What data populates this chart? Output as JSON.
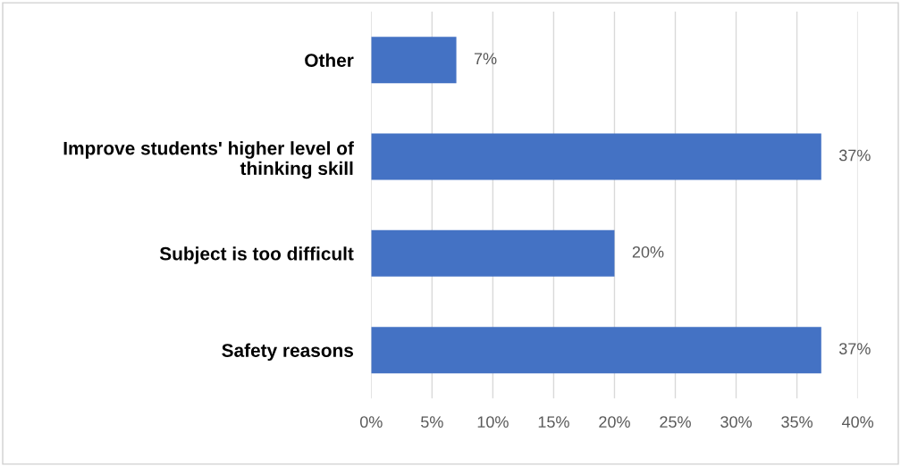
{
  "chart_data": {
    "type": "bar",
    "orientation": "horizontal",
    "categories": [
      "Other",
      "Improve students' higher level of\nthinking skill",
      "Subject is too difficult",
      "Safety reasons"
    ],
    "values": [
      7,
      37,
      20,
      37
    ],
    "color": "#4472c4",
    "data_labels": true,
    "value_labels": [
      "7%",
      "37%",
      "20%",
      "37%"
    ],
    "xlim": [
      0,
      40
    ],
    "xticks": [
      {
        "value": 0,
        "label": "0%"
      },
      {
        "value": 5,
        "label": "5%"
      },
      {
        "value": 10,
        "label": "10%"
      },
      {
        "value": 15,
        "label": "15%"
      },
      {
        "value": 20,
        "label": "20%"
      },
      {
        "value": 25,
        "label": "25%"
      },
      {
        "value": 30,
        "label": "30%"
      },
      {
        "value": 35,
        "label": "35%"
      },
      {
        "value": 40,
        "label": "40%"
      }
    ],
    "grid": "x",
    "legend": false
  }
}
